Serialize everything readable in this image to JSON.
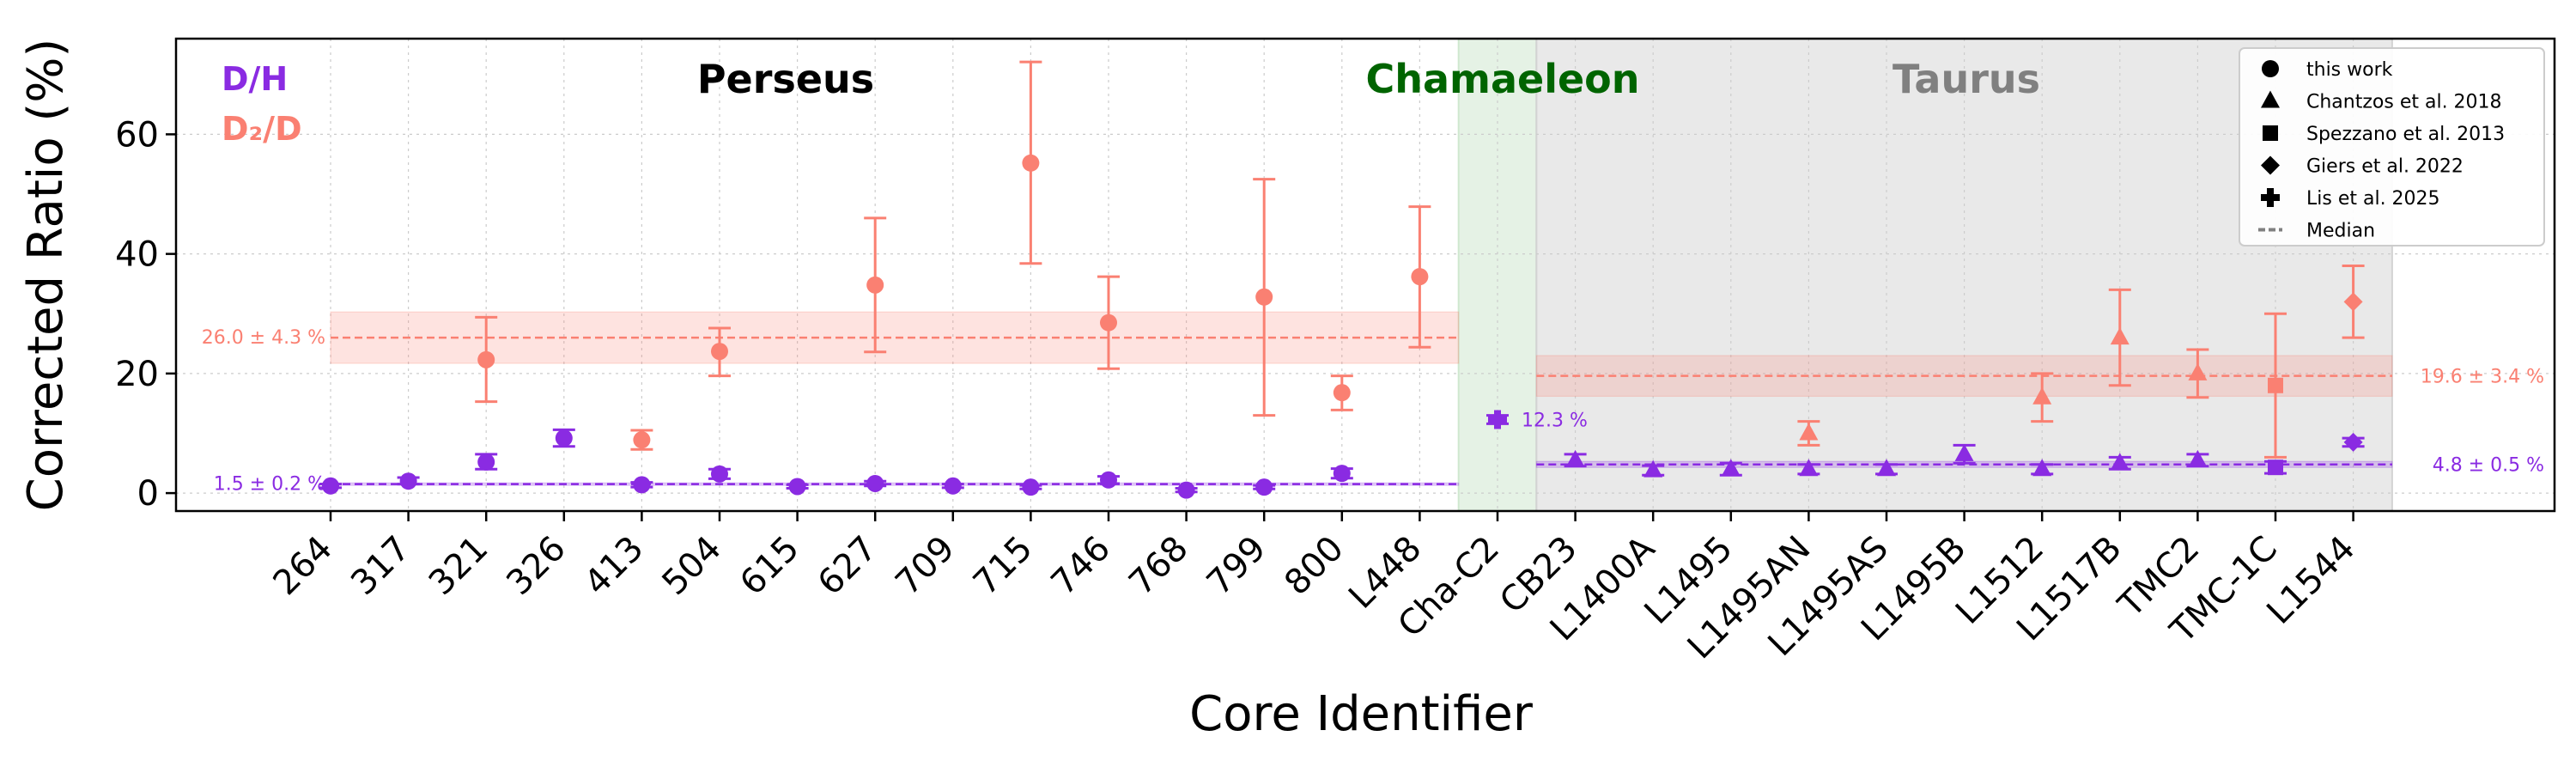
{
  "chart_data": {
    "type": "scatter",
    "xlabel": "Core Identifier",
    "ylabel": "Corrected Ratio (%)",
    "ylim": [
      -3,
      76
    ],
    "yticks": [
      0,
      20,
      40,
      60
    ],
    "grid": true,
    "categories": [
      "264",
      "317",
      "321",
      "326",
      "413",
      "504",
      "615",
      "627",
      "709",
      "715",
      "746",
      "768",
      "799",
      "800",
      "L448",
      "Cha-C2",
      "CB23",
      "L1400A",
      "L1495",
      "L1495AN",
      "L1495AS",
      "L1495B",
      "L1512",
      "L1517B",
      "TMC2",
      "TMC-1C",
      "L1544"
    ],
    "regions": [
      {
        "name": "Perseus",
        "color": "#000000",
        "shade": null,
        "from": "264",
        "to": "L448"
      },
      {
        "name": "Chamaeleon",
        "color": "#006400",
        "shade": "#cfe8cf",
        "from": "Cha-C2",
        "to": "Cha-C2"
      },
      {
        "name": "Taurus",
        "color": "#808080",
        "shade": "#d3d3d3",
        "from": "CB23",
        "to": "L1544"
      }
    ],
    "species_legend": [
      {
        "name": "D/H",
        "color": "#8a2be2"
      },
      {
        "name": "D₂/D",
        "color": "#fa8072"
      }
    ],
    "marker_legend": [
      {
        "marker": "circle",
        "label": "this work"
      },
      {
        "marker": "triangle",
        "label": "Chantzos et al. 2018"
      },
      {
        "marker": "square",
        "label": "Spezzano et al. 2013"
      },
      {
        "marker": "diamond",
        "label": "Giers et al. 2022"
      },
      {
        "marker": "plus",
        "label": "Lis et al. 2025"
      },
      {
        "marker": "dash",
        "label": "Median"
      }
    ],
    "series": [
      {
        "name": "D/H",
        "color": "#8a2be2",
        "points": [
          {
            "x": "264",
            "y": 1.2,
            "lo": 0.9,
            "hi": 1.5,
            "marker": "circle"
          },
          {
            "x": "317",
            "y": 2.0,
            "lo": 1.5,
            "hi": 2.6,
            "marker": "circle"
          },
          {
            "x": "321",
            "y": 5.2,
            "lo": 4.0,
            "hi": 6.5,
            "marker": "circle"
          },
          {
            "x": "326",
            "y": 9.2,
            "lo": 7.8,
            "hi": 10.6,
            "marker": "circle"
          },
          {
            "x": "413",
            "y": 1.4,
            "lo": 1.0,
            "hi": 1.8,
            "marker": "circle"
          },
          {
            "x": "504",
            "y": 3.2,
            "lo": 2.4,
            "hi": 4.0,
            "marker": "circle"
          },
          {
            "x": "615",
            "y": 1.1,
            "lo": 0.8,
            "hi": 1.4,
            "marker": "circle"
          },
          {
            "x": "627",
            "y": 1.6,
            "lo": 1.2,
            "hi": 2.0,
            "marker": "circle"
          },
          {
            "x": "709",
            "y": 1.2,
            "lo": 0.9,
            "hi": 1.5,
            "marker": "circle"
          },
          {
            "x": "715",
            "y": 1.0,
            "lo": 0.7,
            "hi": 1.3,
            "marker": "circle"
          },
          {
            "x": "746",
            "y": 2.2,
            "lo": 1.6,
            "hi": 2.8,
            "marker": "circle"
          },
          {
            "x": "768",
            "y": 0.5,
            "lo": 0.2,
            "hi": 0.8,
            "marker": "circle"
          },
          {
            "x": "799",
            "y": 1.0,
            "lo": 0.7,
            "hi": 1.3,
            "marker": "circle"
          },
          {
            "x": "800",
            "y": 3.3,
            "lo": 2.5,
            "hi": 4.1,
            "marker": "circle"
          },
          {
            "x": "Cha-C2",
            "y": 12.3,
            "lo": 11.6,
            "hi": 13.0,
            "marker": "plus"
          },
          {
            "x": "CB23",
            "y": 5.5,
            "lo": 4.5,
            "hi": 6.5,
            "marker": "triangle"
          },
          {
            "x": "L1400A",
            "y": 3.8,
            "lo": 3.0,
            "hi": 4.6,
            "marker": "triangle"
          },
          {
            "x": "L1495",
            "y": 4.0,
            "lo": 3.0,
            "hi": 5.0,
            "marker": "triangle"
          },
          {
            "x": "L1495AN",
            "y": 4.0,
            "lo": 3.2,
            "hi": 4.8,
            "marker": "triangle"
          },
          {
            "x": "L1495AS",
            "y": 4.0,
            "lo": 3.2,
            "hi": 4.8,
            "marker": "triangle"
          },
          {
            "x": "L1495B",
            "y": 6.5,
            "lo": 5.0,
            "hi": 8.0,
            "marker": "triangle"
          },
          {
            "x": "L1512",
            "y": 4.0,
            "lo": 3.2,
            "hi": 4.8,
            "marker": "triangle"
          },
          {
            "x": "L1517B",
            "y": 5.0,
            "lo": 4.0,
            "hi": 6.0,
            "marker": "triangle"
          },
          {
            "x": "TMC2",
            "y": 5.5,
            "lo": 4.5,
            "hi": 6.5,
            "marker": "triangle"
          },
          {
            "x": "TMC-1C",
            "y": 4.3,
            "lo": 3.3,
            "hi": 5.3,
            "marker": "square"
          },
          {
            "x": "L1544",
            "y": 8.5,
            "lo": 7.8,
            "hi": 9.2,
            "marker": "diamond"
          }
        ]
      },
      {
        "name": "D₂/D",
        "color": "#fa8072",
        "points": [
          {
            "x": "321",
            "y": 22.3,
            "lo": 15.3,
            "hi": 29.4,
            "marker": "circle"
          },
          {
            "x": "413",
            "y": 8.9,
            "lo": 7.3,
            "hi": 10.5,
            "marker": "circle"
          },
          {
            "x": "504",
            "y": 23.7,
            "lo": 19.6,
            "hi": 27.6,
            "marker": "circle"
          },
          {
            "x": "627",
            "y": 34.8,
            "lo": 23.6,
            "hi": 46.0,
            "marker": "circle"
          },
          {
            "x": "715",
            "y": 55.2,
            "lo": 38.4,
            "hi": 72.1,
            "marker": "circle"
          },
          {
            "x": "746",
            "y": 28.5,
            "lo": 20.8,
            "hi": 36.2,
            "marker": "circle"
          },
          {
            "x": "799",
            "y": 32.8,
            "lo": 13.0,
            "hi": 52.5,
            "marker": "circle"
          },
          {
            "x": "800",
            "y": 16.8,
            "lo": 13.9,
            "hi": 19.6,
            "marker": "circle"
          },
          {
            "x": "L448",
            "y": 36.2,
            "lo": 24.4,
            "hi": 47.9,
            "marker": "circle"
          },
          {
            "x": "L1495AN",
            "y": 10.0,
            "lo": 8.0,
            "hi": 12.0,
            "marker": "triangle"
          },
          {
            "x": "L1512",
            "y": 16.0,
            "lo": 12.0,
            "hi": 20.0,
            "marker": "triangle"
          },
          {
            "x": "L1517B",
            "y": 26.0,
            "lo": 18.0,
            "hi": 34.0,
            "marker": "triangle"
          },
          {
            "x": "TMC2",
            "y": 20.0,
            "lo": 16.0,
            "hi": 24.0,
            "marker": "triangle"
          },
          {
            "x": "TMC-1C",
            "y": 18.0,
            "lo": 6.0,
            "hi": 30.0,
            "marker": "square"
          },
          {
            "x": "L1544",
            "y": 32.0,
            "lo": 26.0,
            "hi": 38.0,
            "marker": "diamond"
          }
        ]
      }
    ],
    "medians": [
      {
        "series": "D/H",
        "region": "Perseus",
        "value": 1.5,
        "err": 0.2,
        "label": "1.5 ± 0.2 %",
        "from": "264",
        "to": "L448"
      },
      {
        "series": "D₂/D",
        "region": "Perseus",
        "value": 26.0,
        "err": 4.3,
        "label": "26.0 ± 4.3 %",
        "from": "264",
        "to": "L448"
      },
      {
        "series": "D/H",
        "region": "Chamaeleon",
        "value": 12.3,
        "err": 0,
        "label": "12.3 %",
        "from": "Cha-C2",
        "to": "Cha-C2"
      },
      {
        "series": "D/H",
        "region": "Taurus",
        "value": 4.8,
        "err": 0.5,
        "label": "4.8 ± 0.5 %",
        "from": "CB23",
        "to": "L1544"
      },
      {
        "series": "D₂/D",
        "region": "Taurus",
        "value": 19.6,
        "err": 3.4,
        "label": "19.6 ± 3.4 %",
        "from": "CB23",
        "to": "L1544"
      }
    ]
  }
}
